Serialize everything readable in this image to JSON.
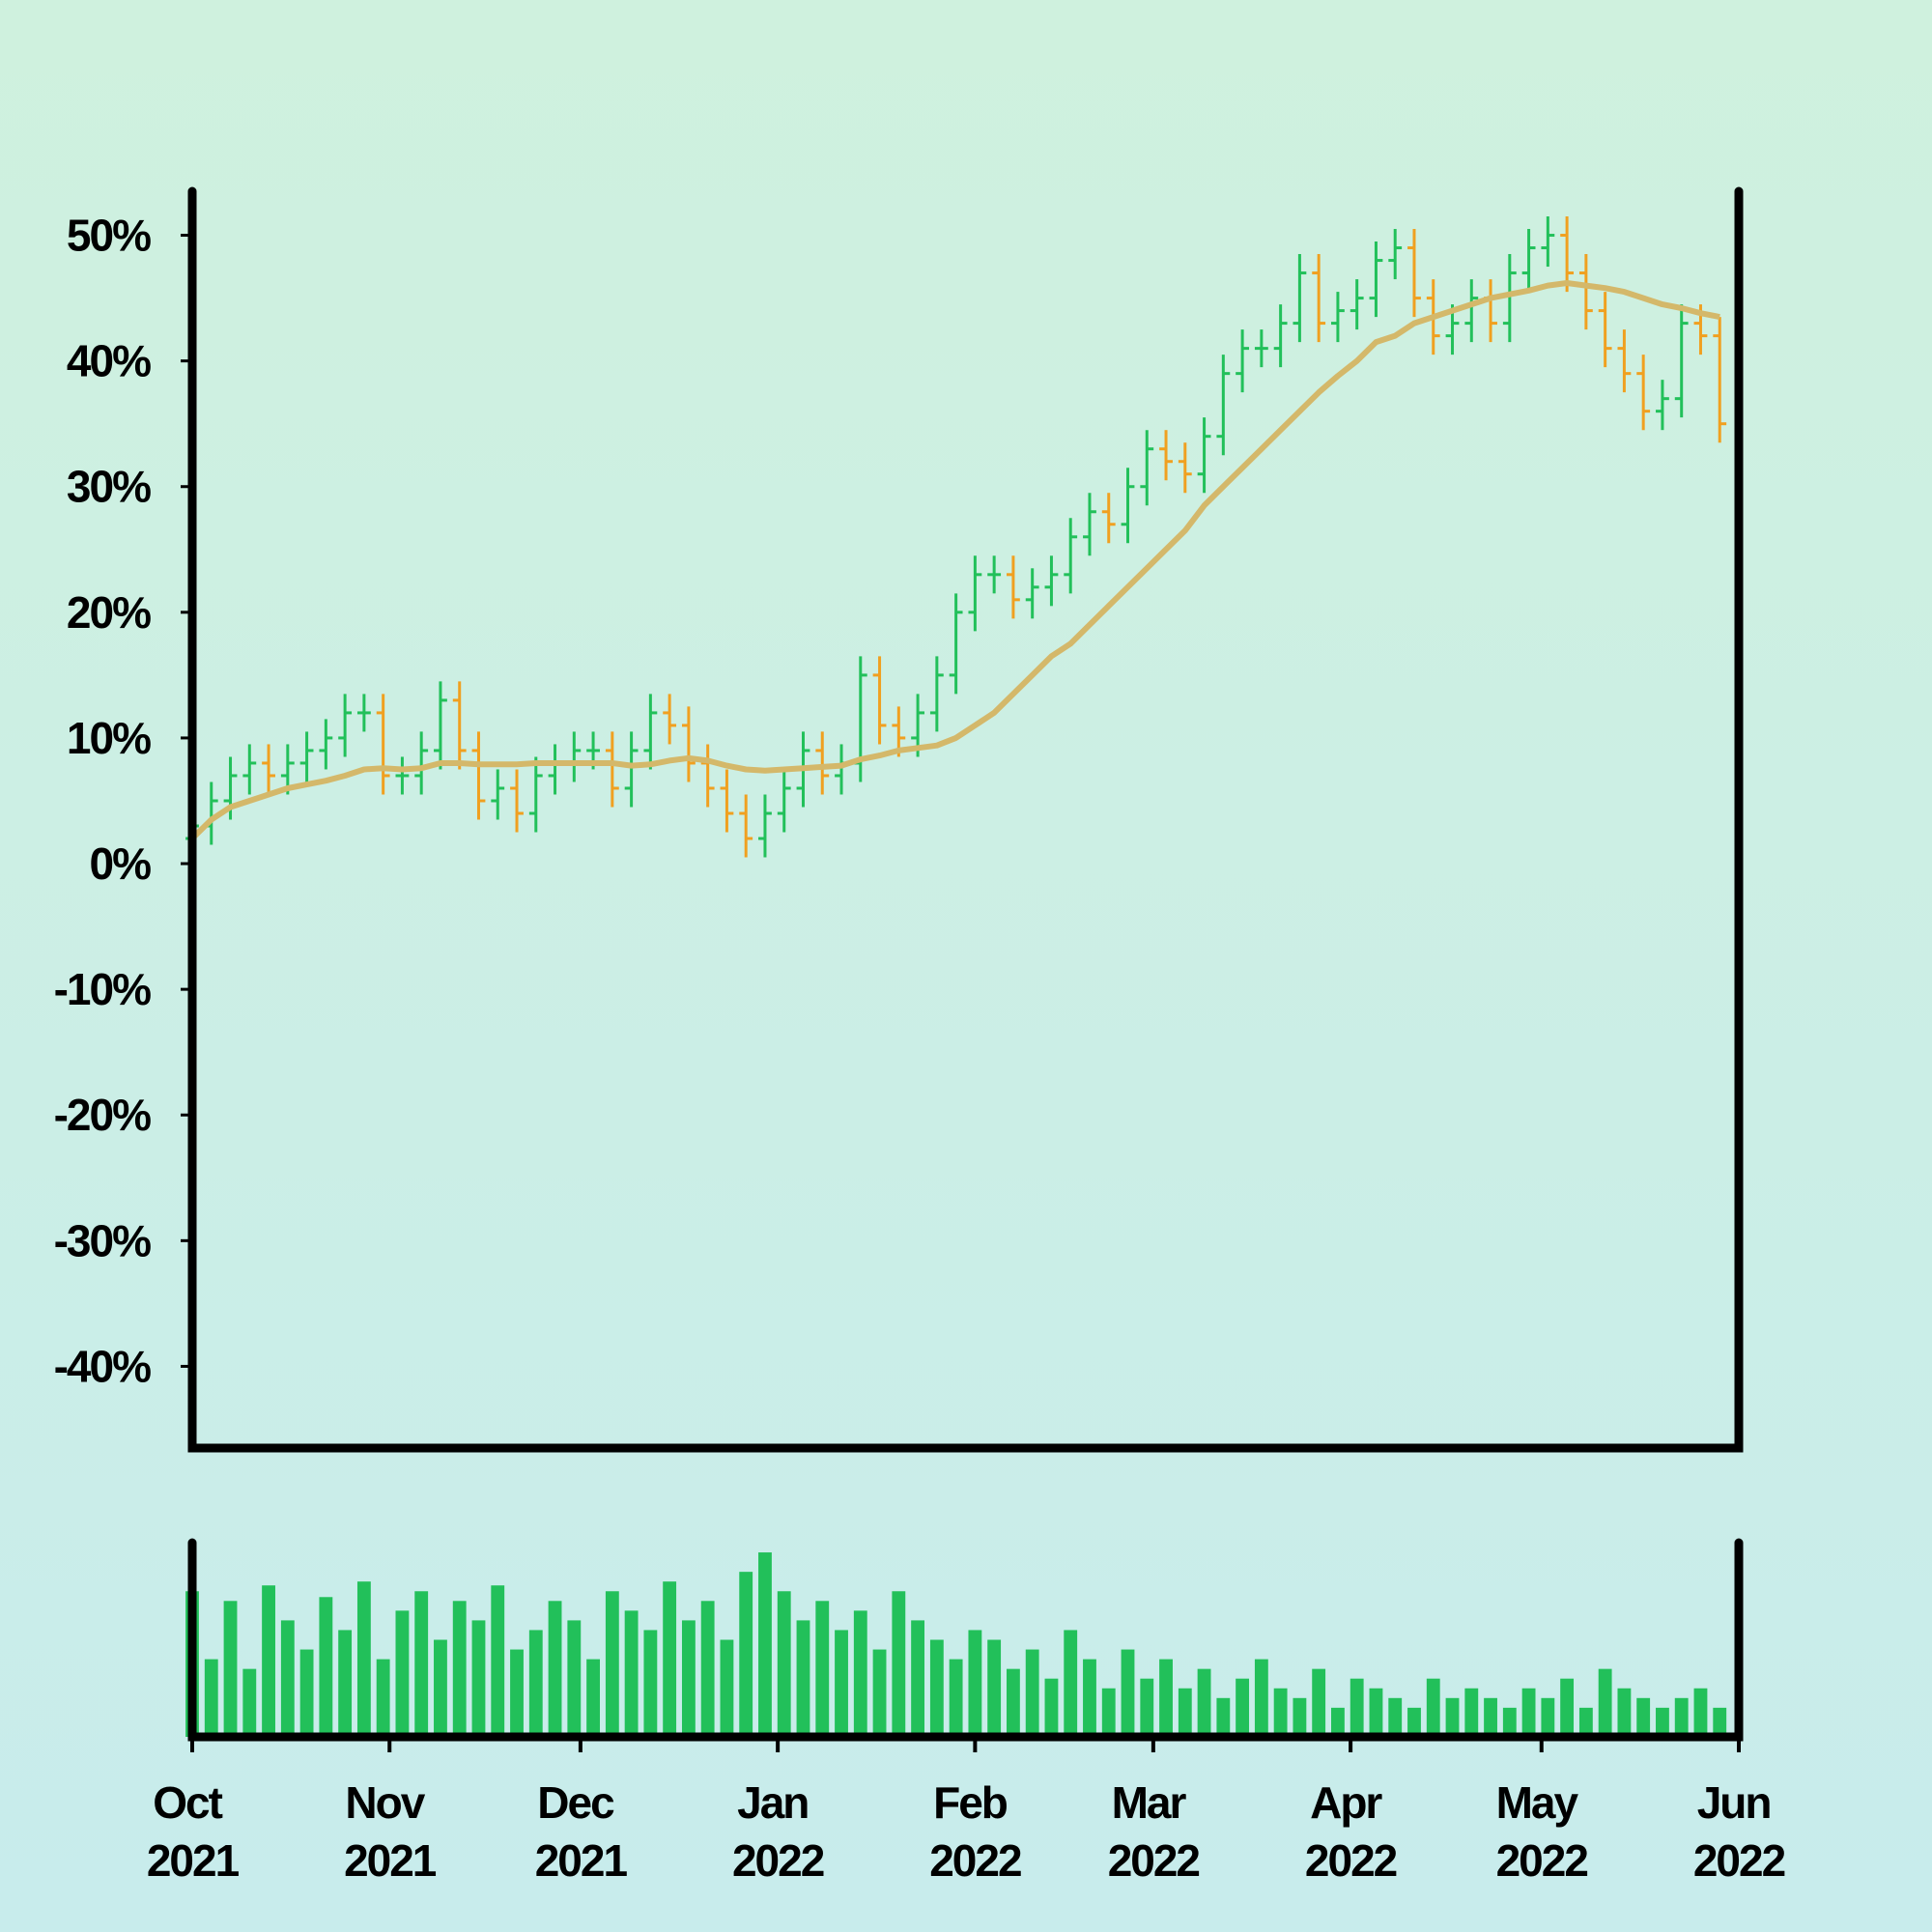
{
  "chart_data": [
    {
      "type": "ohlc",
      "x": [
        0,
        3,
        6,
        9,
        12,
        15,
        18,
        21,
        24,
        27,
        30,
        33,
        36,
        39,
        42,
        45,
        48,
        51,
        54,
        57,
        60,
        63,
        66,
        69,
        72,
        75,
        78,
        81,
        84,
        87,
        90,
        93,
        96,
        99,
        102,
        105,
        108,
        111,
        114,
        117,
        120,
        123,
        126,
        129,
        132,
        135,
        138,
        141,
        144,
        147,
        150,
        153,
        156,
        159,
        162,
        165,
        168,
        171,
        174,
        177,
        180,
        183,
        186,
        189,
        192,
        195,
        198,
        201,
        204,
        207,
        210,
        213,
        216,
        219,
        222,
        225,
        228,
        231,
        234,
        237,
        240
      ],
      "open": [
        2,
        3,
        5,
        7,
        8,
        7,
        8,
        9,
        10,
        12,
        12,
        7,
        7,
        9,
        13,
        9,
        5,
        6,
        4,
        7,
        8,
        9,
        9,
        6,
        9,
        12,
        11,
        8,
        6,
        4,
        2,
        4,
        6,
        9,
        7,
        8,
        15,
        11,
        10,
        12,
        15,
        20,
        23,
        23,
        21,
        22,
        23,
        26,
        28,
        27,
        30,
        33,
        32,
        31,
        34,
        39,
        41,
        41,
        43,
        47,
        43,
        44,
        45,
        48,
        49,
        45,
        42,
        43,
        45,
        43,
        47,
        49,
        50,
        47,
        44,
        41,
        39,
        36,
        37,
        43,
        42
      ],
      "high": [
        4.5,
        6.5,
        8.5,
        9.5,
        9.5,
        9.5,
        10.5,
        11.5,
        13.5,
        13.5,
        13.5,
        8.5,
        10.5,
        14.5,
        14.5,
        10.5,
        7.5,
        7.5,
        8.5,
        9.5,
        10.5,
        10.5,
        10.5,
        10.5,
        13.5,
        13.5,
        12.5,
        9.5,
        7.5,
        5.5,
        5.5,
        7.5,
        10.5,
        10.5,
        9.5,
        16.5,
        16.5,
        12.5,
        13.5,
        16.5,
        21.5,
        24.5,
        24.5,
        24.5,
        23.5,
        24.5,
        27.5,
        29.5,
        29.5,
        31.5,
        34.5,
        34.5,
        33.5,
        35.5,
        40.5,
        42.5,
        42.5,
        44.5,
        48.5,
        48.5,
        45.5,
        46.5,
        49.5,
        50.5,
        50.5,
        46.5,
        44.5,
        46.5,
        46.5,
        48.5,
        50.5,
        51.5,
        51.5,
        48.5,
        45.5,
        42.5,
        40.5,
        38.5,
        44.5,
        44.5,
        43.5
      ],
      "low": [
        0.5,
        1.5,
        3.5,
        5.5,
        5.5,
        5.5,
        6.5,
        7.5,
        8.5,
        10.5,
        5.5,
        5.5,
        5.5,
        7.5,
        7.5,
        3.5,
        3.5,
        2.5,
        2.5,
        5.5,
        6.5,
        7.5,
        4.5,
        4.5,
        7.5,
        9.5,
        6.5,
        4.5,
        2.5,
        0.5,
        0.5,
        2.5,
        4.5,
        5.5,
        5.5,
        6.5,
        9.5,
        8.5,
        8.5,
        10.5,
        13.5,
        18.5,
        21.5,
        19.5,
        19.5,
        20.5,
        21.5,
        24.5,
        25.5,
        25.5,
        28.5,
        30.5,
        29.5,
        29.5,
        32.5,
        37.5,
        39.5,
        39.5,
        41.5,
        41.5,
        41.5,
        42.5,
        43.5,
        46.5,
        43.5,
        40.5,
        40.5,
        41.5,
        41.5,
        41.5,
        45.5,
        47.5,
        45.5,
        42.5,
        39.5,
        37.5,
        34.5,
        34.5,
        35.5,
        40.5,
        33.5
      ],
      "close": [
        3,
        5,
        7,
        8,
        7,
        8,
        9,
        10,
        12,
        12,
        7,
        7,
        9,
        13,
        9,
        5,
        6,
        4,
        7,
        8,
        9,
        9,
        6,
        9,
        12,
        11,
        8,
        6,
        4,
        2,
        4,
        6,
        9,
        7,
        8,
        15,
        11,
        10,
        12,
        15,
        20,
        23,
        23,
        21,
        22,
        23,
        26,
        28,
        27,
        30,
        33,
        32,
        31,
        34,
        39,
        41,
        41,
        43,
        47,
        43,
        44,
        45,
        48,
        49,
        45,
        42,
        43,
        45,
        43,
        47,
        49,
        50,
        47,
        44,
        41,
        39,
        36,
        37,
        43,
        42,
        35
      ],
      "up_color": "#22c05a",
      "down_color": "#f0a020",
      "moving_average": {
        "color": "#d4b86a",
        "values": [
          2,
          3.5,
          4.5,
          5,
          5.5,
          6,
          6.3,
          6.6,
          7,
          7.5,
          7.6,
          7.5,
          7.6,
          8,
          8,
          7.9,
          7.9,
          7.9,
          8,
          8,
          8,
          8,
          8,
          7.8,
          7.9,
          8.2,
          8.4,
          8.2,
          7.8,
          7.5,
          7.4,
          7.5,
          7.6,
          7.7,
          7.8,
          8.3,
          8.6,
          9,
          9.2,
          9.4,
          10,
          11,
          12,
          13.5,
          15,
          16.5,
          17.5,
          19,
          20.5,
          22,
          23.5,
          25,
          26.5,
          28.5,
          30,
          31.5,
          33,
          34.5,
          36,
          37.5,
          38.8,
          40,
          41.5,
          42,
          43,
          43.5,
          44,
          44.5,
          45,
          45.3,
          45.6,
          46,
          46.2,
          46,
          45.8,
          45.5,
          45,
          44.5,
          44.2,
          43.8,
          43.5
        ]
      },
      "xlim": [
        0,
        243
      ],
      "ylim": [
        -46.5,
        53.5
      ],
      "yticks": [
        {
          "value": -40,
          "label": "-40%"
        },
        {
          "value": -30,
          "label": "-30%"
        },
        {
          "value": -20,
          "label": "-20%"
        },
        {
          "value": -10,
          "label": "-10%"
        },
        {
          "value": 0,
          "label": "0%"
        },
        {
          "value": 10,
          "label": "10%"
        },
        {
          "value": 20,
          "label": "20%"
        },
        {
          "value": 30,
          "label": "30%"
        },
        {
          "value": 40,
          "label": "40%"
        },
        {
          "value": 50,
          "label": "50%"
        }
      ]
    },
    {
      "type": "bar",
      "color": "#22c05a",
      "values": [
        75,
        40,
        70,
        35,
        78,
        60,
        45,
        72,
        55,
        80,
        40,
        65,
        75,
        50,
        70,
        60,
        78,
        45,
        55,
        70,
        60,
        40,
        75,
        65,
        55,
        80,
        60,
        70,
        50,
        85,
        95,
        75,
        60,
        70,
        55,
        65,
        45,
        75,
        60,
        50,
        40,
        55,
        50,
        35,
        45,
        30,
        55,
        40,
        25,
        45,
        30,
        40,
        25,
        35,
        20,
        30,
        40,
        25,
        20,
        35,
        15,
        30,
        25,
        20,
        15,
        30,
        20,
        25,
        20,
        15,
        25,
        20,
        30,
        15,
        35,
        25,
        20,
        15,
        20,
        25,
        15
      ],
      "xlim": [
        0,
        243
      ],
      "ylim": [
        0,
        100
      ],
      "xticks": [
        {
          "value": 0,
          "label": "Oct 2021"
        },
        {
          "value": 31,
          "label": "Nov 2021"
        },
        {
          "value": 61,
          "label": "Dec 2021"
        },
        {
          "value": 92,
          "label": "Jan 2022"
        },
        {
          "value": 123,
          "label": "Feb 2022"
        },
        {
          "value": 151,
          "label": "Mar 2022"
        },
        {
          "value": 182,
          "label": "Apr 2022"
        },
        {
          "value": 212,
          "label": "May 2022"
        },
        {
          "value": 243,
          "label": "Jun 2022"
        }
      ]
    }
  ]
}
